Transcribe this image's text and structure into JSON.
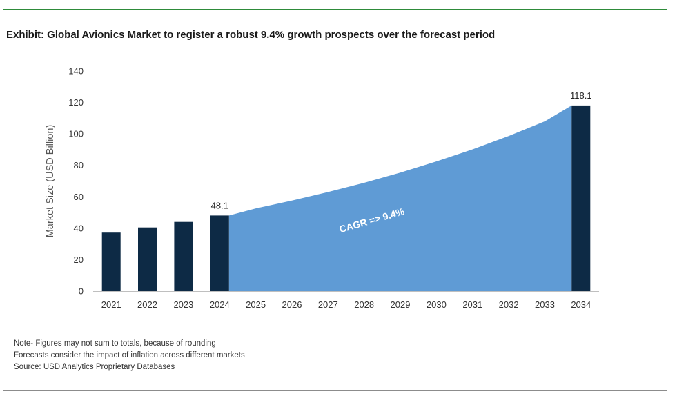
{
  "title": "Exhibit: Global Avionics Market to register a robust 9.4% growth prospects over the forecast period",
  "notes": [
    "Note- Figures may not sum to totals, because of rounding",
    "Forecasts consider the impact of inflation across different markets",
    "Source: USD Analytics Proprietary Databases"
  ],
  "colors": {
    "bar": "#0d2a45",
    "area": "#5f9bd5",
    "top_rule": "#2e8b3a",
    "cagr_text": "#ffffff"
  },
  "chart_data": {
    "type": "bar",
    "categories": [
      "2021",
      "2022",
      "2023",
      "2024",
      "2025",
      "2026",
      "2027",
      "2028",
      "2029",
      "2030",
      "2031",
      "2032",
      "2033",
      "2034"
    ],
    "bars": [
      {
        "x": "2021",
        "value": 37.2
      },
      {
        "x": "2022",
        "value": 40.5
      },
      {
        "x": "2023",
        "value": 44.0
      },
      {
        "x": "2024",
        "value": 48.1,
        "label": "48.1"
      },
      {
        "x": "2034",
        "value": 118.1,
        "label": "118.1"
      }
    ],
    "area": {
      "x": [
        "2024",
        "2025",
        "2026",
        "2027",
        "2028",
        "2029",
        "2030",
        "2031",
        "2032",
        "2033",
        "2034"
      ],
      "values": [
        48.1,
        52.6,
        57.6,
        63.0,
        68.9,
        75.4,
        82.5,
        90.2,
        98.7,
        108.0,
        118.1
      ]
    },
    "annotation": "CAGR => 9.4%",
    "ylabel": "Market Size (USD Billion)",
    "xlabel": "",
    "ylim": [
      0,
      140
    ],
    "yticks": [
      0,
      20,
      40,
      60,
      80,
      100,
      120,
      140
    ],
    "grid": false,
    "legend": "none"
  }
}
